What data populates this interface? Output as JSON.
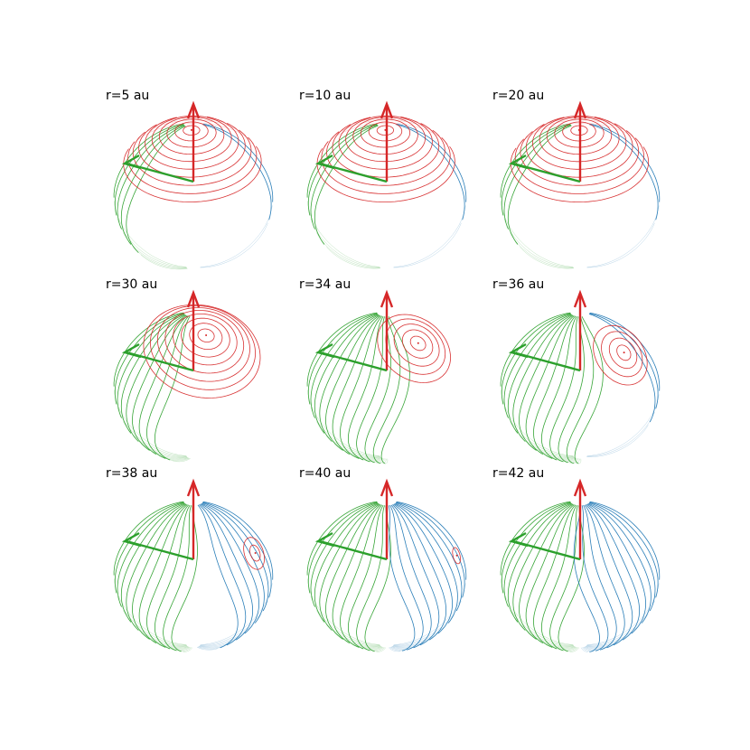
{
  "colors": {
    "prograde": "#d62728",
    "retrograde": "#1f77b4",
    "librating": "#2ca02c"
  },
  "arrows": {
    "vertical": "red-vertical-arrow",
    "horizontal": "green-horizontal-arrow"
  },
  "panels": [
    {
      "title": "r=5 au",
      "fractions": {
        "red": 0.7,
        "blue": 0.08,
        "green": 0.22
      },
      "red_center_lat": 80,
      "red_center_lon": -8
    },
    {
      "title": "r=10 au",
      "fractions": {
        "red": 0.72,
        "blue": 0.08,
        "green": 0.2
      },
      "red_center_lat": 80,
      "red_center_lon": -6
    },
    {
      "title": "r=20 au",
      "fractions": {
        "red": 0.74,
        "blue": 0.08,
        "green": 0.18
      },
      "red_center_lat": 80,
      "red_center_lon": -4
    },
    {
      "title": "r=30 au",
      "fractions": {
        "red": 0.58,
        "blue": 0.0,
        "green": 0.42
      },
      "red_center_lat": 62,
      "red_center_lon": 20
    },
    {
      "title": "r=34 au",
      "fractions": {
        "red": 0.38,
        "blue": 0.02,
        "green": 0.6
      },
      "red_center_lat": 52,
      "red_center_lon": 40
    },
    {
      "title": "r=36 au",
      "fractions": {
        "red": 0.28,
        "blue": 0.14,
        "green": 0.58
      },
      "red_center_lat": 42,
      "red_center_lon": 48
    },
    {
      "title": "r=38 au",
      "fractions": {
        "red": 0.14,
        "blue": 0.36,
        "green": 0.5
      },
      "red_center_lat": 28,
      "red_center_lon": 62
    },
    {
      "title": "r=40 au",
      "fractions": {
        "red": 0.04,
        "blue": 0.46,
        "green": 0.5
      },
      "red_center_lat": 22,
      "red_center_lon": 72
    },
    {
      "title": "r=42 au",
      "fractions": {
        "red": 0.0,
        "blue": 0.52,
        "green": 0.48
      },
      "red_center_lat": 18,
      "red_center_lon": 80
    }
  ]
}
